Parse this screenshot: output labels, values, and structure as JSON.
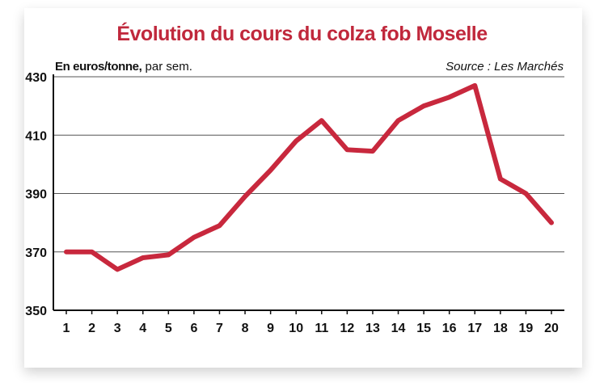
{
  "chart_data": {
    "type": "line",
    "title": "Évolution du cours du colza fob Moselle",
    "unit_label_bold": "En euros/tonne,",
    "unit_label_rest": " par sem.",
    "source": "Source : Les Marchés",
    "x": [
      1,
      2,
      3,
      4,
      5,
      6,
      7,
      8,
      9,
      10,
      11,
      12,
      13,
      14,
      15,
      16,
      17,
      18,
      19,
      20
    ],
    "series": [
      {
        "values": [
          370,
          370,
          364,
          368,
          369,
          375,
          379,
          389,
          398,
          408,
          415,
          405,
          404.5,
          415,
          420,
          423,
          427,
          395,
          390,
          380
        ]
      }
    ],
    "ylim": [
      350,
      430
    ],
    "yticks": [
      350,
      370,
      390,
      410,
      430
    ],
    "xlim": [
      1,
      20
    ],
    "grid": true,
    "line_color": "#c8283d"
  }
}
